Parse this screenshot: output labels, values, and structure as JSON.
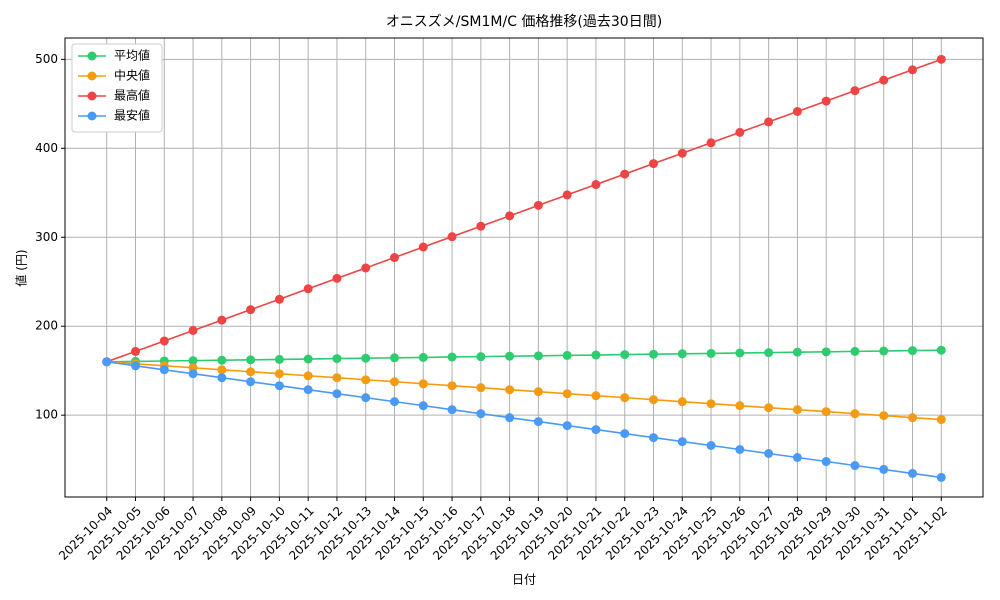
{
  "chart_data": {
    "type": "line",
    "title": "オニスズメ/SM1M/C 価格推移(過去30日間)",
    "x_label": "日付",
    "y_label": "値 (円)",
    "categories": [
      "2025-10-04",
      "2025-10-05",
      "2025-10-06",
      "2025-10-07",
      "2025-10-08",
      "2025-10-09",
      "2025-10-10",
      "2025-10-11",
      "2025-10-12",
      "2025-10-13",
      "2025-10-14",
      "2025-10-15",
      "2025-10-16",
      "2025-10-17",
      "2025-10-18",
      "2025-10-19",
      "2025-10-20",
      "2025-10-21",
      "2025-10-22",
      "2025-10-23",
      "2025-10-24",
      "2025-10-25",
      "2025-10-26",
      "2025-10-27",
      "2025-10-28",
      "2025-10-29",
      "2025-10-30",
      "2025-10-31",
      "2025-11-01",
      "2025-11-02"
    ],
    "series": [
      {
        "name": "平均値",
        "color": "#2ecc71",
        "values": [
          160,
          160.4,
          160.9,
          161.3,
          161.8,
          162.2,
          162.7,
          163.1,
          163.6,
          164.0,
          164.5,
          164.9,
          165.4,
          165.8,
          166.3,
          166.7,
          167.2,
          167.6,
          168.1,
          168.5,
          169.0,
          169.4,
          169.9,
          170.3,
          170.8,
          171.2,
          171.7,
          172.1,
          172.6,
          173
        ]
      },
      {
        "name": "中央値",
        "color": "#f39c12",
        "values": [
          160,
          157.8,
          155.5,
          153.3,
          151.0,
          148.8,
          146.6,
          144.3,
          142.1,
          139.8,
          137.6,
          135.3,
          133.1,
          130.9,
          128.6,
          126.4,
          124.1,
          121.9,
          119.7,
          117.4,
          115.2,
          112.9,
          110.7,
          108.4,
          106.2,
          104.0,
          101.7,
          99.5,
          97.2,
          95
        ]
      },
      {
        "name": "最高値",
        "color": "#ef4444",
        "values": [
          160,
          171.7,
          183.4,
          195.2,
          206.9,
          218.6,
          230.3,
          242.1,
          253.8,
          265.5,
          277.2,
          289.0,
          300.7,
          312.4,
          324.1,
          335.9,
          347.6,
          359.3,
          371.0,
          382.8,
          394.5,
          406.2,
          417.9,
          429.7,
          441.4,
          453.1,
          464.8,
          476.6,
          488.3,
          500
        ]
      },
      {
        "name": "最安値",
        "color": "#4a9af5",
        "values": [
          160,
          155.5,
          151.0,
          146.6,
          142.1,
          137.6,
          133.1,
          128.6,
          124.1,
          119.7,
          115.2,
          110.7,
          106.2,
          101.7,
          97.2,
          92.8,
          88.3,
          83.8,
          79.3,
          74.8,
          70.3,
          65.9,
          61.4,
          56.9,
          52.4,
          47.9,
          43.4,
          39.0,
          34.5,
          30
        ]
      }
    ],
    "ylim": [
      8,
      524
    ],
    "yticks": [
      100,
      200,
      300,
      400,
      500
    ],
    "grid": true,
    "legend": "upper-left"
  }
}
